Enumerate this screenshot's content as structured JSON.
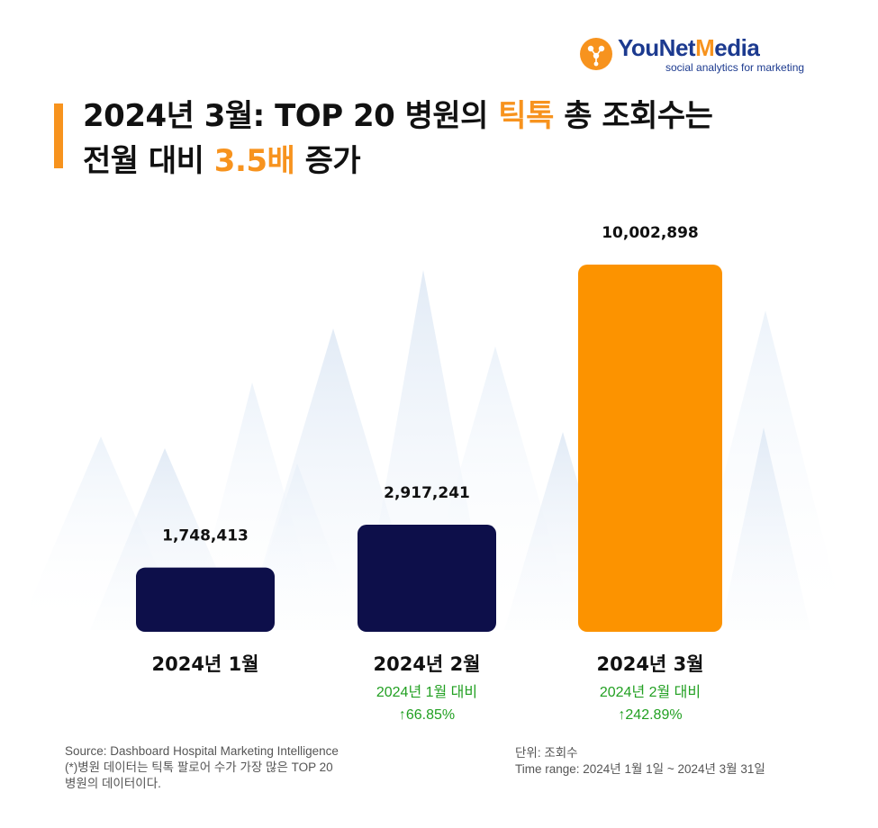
{
  "brand": {
    "name_prefix": "YouNet",
    "name_suffix": "edia",
    "tagline": "social analytics for marketing"
  },
  "title": {
    "line1_part1": "2024년 3월: TOP 20 병원의 ",
    "line1_highlight": "틱톡",
    "line1_part2": " 총 조회수는",
    "line2_part1": "전월 대비 ",
    "line2_highlight": "3.5배",
    "line2_part2": " 증가"
  },
  "colors": {
    "accent": "#f7931e",
    "bar_dark": "#0d0f4a",
    "bar_highlight": "#fc9300",
    "growth_text": "#22a022"
  },
  "chart_data": {
    "type": "bar",
    "categories": [
      "2024년 1월",
      "2024년 2월",
      "2024년 3월"
    ],
    "values": [
      1748413,
      2917241,
      10002898
    ],
    "value_labels": [
      "1,748,413",
      "2,917,241",
      "10,002,898"
    ],
    "ylim": [
      0,
      10002898
    ],
    "growth_notes": [
      null,
      {
        "line1": "2024년 1월 대비",
        "line2": "↑66.85%"
      },
      {
        "line1": "2024년 2월 대비",
        "line2": "↑242.89%"
      }
    ],
    "highlight_index": 2
  },
  "footer": {
    "source": "Source: Dashboard Hospital Marketing Intelligence",
    "note_line1": "(*)병원 데이터는 틱톡 팔로어 수가 가장 많은 TOP 20",
    "note_line2": "병원의 데이터이다.",
    "unit": "단위: 조회수",
    "time_range": "Time range: 2024년 1월 1일 ~ 2024년 3월 31일"
  }
}
